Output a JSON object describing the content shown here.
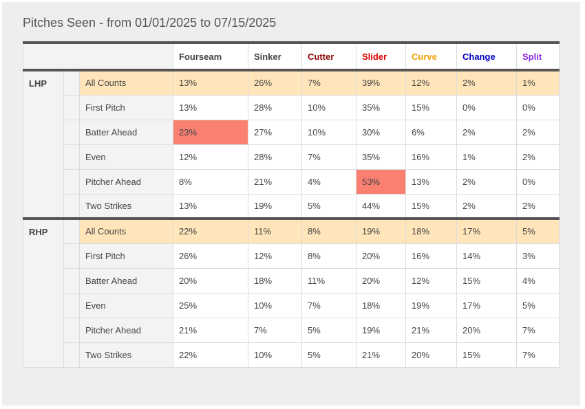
{
  "title": "Pitches Seen - from 01/01/2025 to 07/15/2025",
  "columns": [
    "Fourseam",
    "Sinker",
    "Cutter",
    "Slider",
    "Curve",
    "Change",
    "Split"
  ],
  "groups": [
    {
      "label": "LHP",
      "rows": [
        {
          "label": "All Counts",
          "cells": [
            "13%",
            "26%",
            "7%",
            "39%",
            "12%",
            "2%",
            "1%"
          ]
        },
        {
          "label": "First Pitch",
          "cells": [
            "13%",
            "28%",
            "10%",
            "35%",
            "15%",
            "0%",
            "0%"
          ]
        },
        {
          "label": "Batter Ahead",
          "cells": [
            "23%",
            "27%",
            "10%",
            "30%",
            "6%",
            "2%",
            "2%"
          ]
        },
        {
          "label": "Even",
          "cells": [
            "12%",
            "28%",
            "7%",
            "35%",
            "16%",
            "1%",
            "2%"
          ]
        },
        {
          "label": "Pitcher Ahead",
          "cells": [
            "8%",
            "21%",
            "4%",
            "53%",
            "13%",
            "2%",
            "0%"
          ]
        },
        {
          "label": "Two Strikes",
          "cells": [
            "13%",
            "19%",
            "5%",
            "44%",
            "15%",
            "2%",
            "2%"
          ]
        }
      ]
    },
    {
      "label": "RHP",
      "rows": [
        {
          "label": "All Counts",
          "cells": [
            "22%",
            "11%",
            "8%",
            "19%",
            "18%",
            "17%",
            "5%"
          ]
        },
        {
          "label": "First Pitch",
          "cells": [
            "26%",
            "12%",
            "8%",
            "20%",
            "16%",
            "14%",
            "3%"
          ]
        },
        {
          "label": "Batter Ahead",
          "cells": [
            "20%",
            "18%",
            "11%",
            "20%",
            "12%",
            "15%",
            "4%"
          ]
        },
        {
          "label": "Even",
          "cells": [
            "25%",
            "10%",
            "7%",
            "18%",
            "19%",
            "17%",
            "5%"
          ]
        },
        {
          "label": "Pitcher Ahead",
          "cells": [
            "21%",
            "7%",
            "5%",
            "19%",
            "21%",
            "20%",
            "7%"
          ]
        },
        {
          "label": "Two Strikes",
          "cells": [
            "22%",
            "10%",
            "5%",
            "21%",
            "20%",
            "15%",
            "7%"
          ]
        }
      ]
    }
  ]
}
